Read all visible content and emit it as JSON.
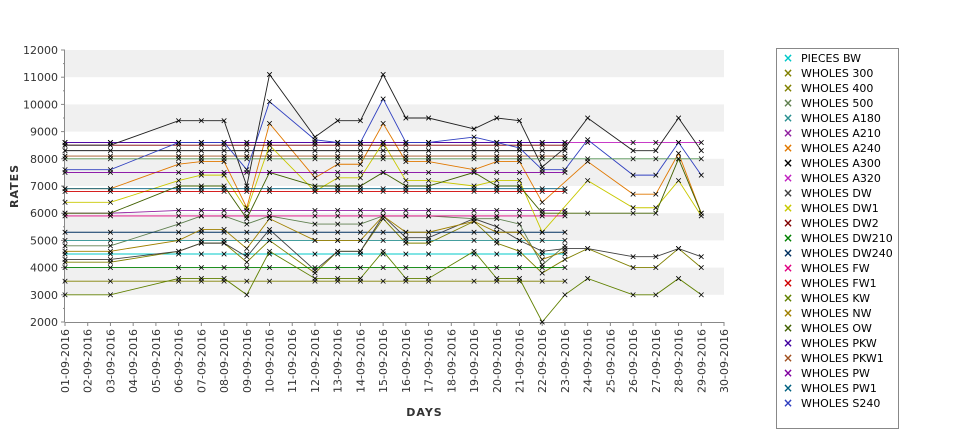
{
  "chart_data": {
    "type": "line",
    "xlabel": "DAYS",
    "ylabel": "RATES",
    "ylim": [
      2000,
      12000
    ],
    "yticks": [
      2000,
      3000,
      4000,
      5000,
      6000,
      7000,
      8000,
      9000,
      10000,
      11000,
      12000
    ],
    "ytick_labels": [
      "2000",
      "3000",
      "4000",
      "5000",
      "6000",
      "7000",
      "8000",
      "9000",
      "10000",
      "11000",
      "12000"
    ],
    "x": [
      "01-09-2016",
      "02-09-2016",
      "03-09-2016",
      "04-09-2016",
      "05-09-2016",
      "06-09-2016",
      "07-09-2016",
      "08-09-2016",
      "09-09-2016",
      "10-09-2016",
      "11-09-2016",
      "12-09-2016",
      "13-09-2016",
      "14-09-2016",
      "15-09-2016",
      "16-09-2016",
      "17-09-2016",
      "18-09-2016",
      "19-09-2016",
      "20-09-2016",
      "21-09-2016",
      "22-09-2016",
      "23-09-2016",
      "24-09-2016",
      "25-09-2016",
      "26-09-2016",
      "27-09-2016",
      "28-09-2016",
      "29-09-2016",
      "30-09-2016"
    ],
    "grid": "alternating-bands",
    "legend_position": "right",
    "series": [
      {
        "name": "PIECES BW",
        "color": "#00c8c8",
        "values": [
          4500,
          null,
          4500,
          null,
          null,
          4500,
          4500,
          4500,
          4500,
          4500,
          null,
          4500,
          4500,
          4500,
          4500,
          4500,
          4500,
          null,
          4500,
          4500,
          4500,
          4500,
          4500,
          null,
          null,
          null,
          null,
          null,
          null,
          null
        ]
      },
      {
        "name": "WHOLES 300",
        "color": "#808000",
        "values": [
          3500,
          null,
          3500,
          null,
          null,
          3500,
          3500,
          3500,
          3500,
          3500,
          null,
          3500,
          3500,
          3500,
          3500,
          3500,
          3500,
          null,
          3500,
          3500,
          3500,
          3500,
          3500,
          null,
          null,
          null,
          null,
          null,
          null,
          null
        ]
      },
      {
        "name": "WHOLES 400",
        "color": "#808000",
        "values": [
          4200,
          null,
          4200,
          null,
          null,
          4600,
          4900,
          4900,
          4200,
          5000,
          null,
          3800,
          4600,
          4600,
          5800,
          4900,
          4900,
          null,
          5700,
          4900,
          4600,
          3800,
          4300,
          4700,
          null,
          4000,
          4000,
          4700,
          4000,
          null
        ]
      },
      {
        "name": "WHOLES 500",
        "color": "#608050",
        "values": [
          4800,
          null,
          4800,
          null,
          null,
          5600,
          5900,
          5900,
          5600,
          5900,
          null,
          5600,
          5600,
          5600,
          5900,
          5900,
          5900,
          null,
          5800,
          5800,
          5600,
          4100,
          4800,
          null,
          null,
          null,
          null,
          null,
          null,
          null
        ]
      },
      {
        "name": "WHOLES A180",
        "color": "#2a9090",
        "values": [
          5000,
          null,
          5000,
          null,
          null,
          5000,
          5000,
          5000,
          5000,
          5000,
          null,
          5000,
          5000,
          5000,
          5000,
          5000,
          5000,
          null,
          5000,
          5000,
          5000,
          5000,
          5000,
          null,
          null,
          null,
          null,
          null,
          null,
          null
        ]
      },
      {
        "name": "WHOLES A210",
        "color": "#9020a0",
        "values": [
          6000,
          null,
          6000,
          null,
          null,
          6100,
          6100,
          6100,
          6100,
          6100,
          null,
          6100,
          6100,
          6100,
          6100,
          6100,
          6100,
          null,
          6100,
          6100,
          6100,
          6100,
          6100,
          null,
          null,
          null,
          null,
          null,
          null,
          null
        ]
      },
      {
        "name": "WHOLES A240",
        "color": "#e07800",
        "values": [
          6900,
          null,
          6900,
          null,
          null,
          7800,
          7900,
          7900,
          6200,
          9300,
          null,
          7300,
          7800,
          7800,
          9300,
          7900,
          7900,
          null,
          7600,
          7900,
          7900,
          6400,
          null,
          7900,
          null,
          6700,
          6700,
          8200,
          6000,
          null
        ]
      },
      {
        "name": "WHOLES A300",
        "color": "#000000",
        "values": [
          8300,
          null,
          8300,
          null,
          null,
          8300,
          8300,
          8300,
          8300,
          8300,
          null,
          8300,
          8300,
          8300,
          8300,
          8300,
          8300,
          null,
          8300,
          8300,
          8300,
          8300,
          8300,
          null,
          null,
          null,
          null,
          null,
          null,
          null
        ]
      },
      {
        "name": "WHOLES A320",
        "color": "#c020c0",
        "values": [
          8600,
          null,
          8600,
          null,
          null,
          8600,
          8600,
          8600,
          8600,
          8600,
          null,
          8600,
          8600,
          8600,
          8600,
          8600,
          8600,
          null,
          8600,
          8600,
          8600,
          8600,
          8600,
          8600,
          null,
          8600,
          8600,
          8600,
          8600,
          null
        ]
      },
      {
        "name": "WHOLES DW",
        "color": "#404040",
        "values": [
          4300,
          null,
          4300,
          null,
          null,
          4600,
          4900,
          4900,
          4400,
          5400,
          null,
          3900,
          4600,
          4600,
          5900,
          5100,
          5100,
          null,
          5800,
          5500,
          5000,
          4600,
          4700,
          4700,
          null,
          4400,
          4400,
          4700,
          4400,
          null
        ]
      },
      {
        "name": "WHOLES DW1",
        "color": "#c8c800",
        "values": [
          6400,
          null,
          6400,
          null,
          null,
          7200,
          7400,
          7400,
          6100,
          8500,
          null,
          6800,
          7300,
          7300,
          8600,
          7200,
          7200,
          null,
          7000,
          7200,
          7200,
          5300,
          null,
          7200,
          null,
          6200,
          6200,
          7200,
          5900,
          null
        ]
      },
      {
        "name": "WHOLES DW2",
        "color": "#800000",
        "values": [
          8500,
          null,
          8500,
          null,
          null,
          8500,
          8500,
          8500,
          8500,
          8500,
          null,
          8500,
          8500,
          8500,
          8500,
          8500,
          8500,
          null,
          8500,
          8500,
          8500,
          8500,
          8500,
          null,
          null,
          null,
          null,
          null,
          null,
          null
        ]
      },
      {
        "name": "WHOLES DW210",
        "color": "#008000",
        "values": [
          4000,
          null,
          4000,
          null,
          null,
          4000,
          4000,
          4000,
          4000,
          4000,
          null,
          4000,
          4000,
          4000,
          4000,
          4000,
          4000,
          null,
          4000,
          4000,
          4000,
          4000,
          4000,
          null,
          null,
          null,
          null,
          null,
          null,
          null
        ]
      },
      {
        "name": "WHOLES DW240",
        "color": "#003060",
        "values": [
          5300,
          null,
          5300,
          null,
          null,
          5300,
          5300,
          5300,
          5300,
          5300,
          null,
          5300,
          5300,
          5300,
          5300,
          5300,
          5300,
          null,
          5300,
          5300,
          5300,
          5300,
          5300,
          null,
          null,
          null,
          null,
          null,
          null,
          null
        ]
      },
      {
        "name": "WHOLES FW",
        "color": "#e00080",
        "values": [
          5900,
          null,
          5900,
          null,
          null,
          5900,
          5900,
          5900,
          5900,
          5900,
          null,
          5900,
          5900,
          5900,
          5900,
          5900,
          5900,
          null,
          5900,
          5900,
          5900,
          5900,
          5900,
          null,
          null,
          null,
          null,
          null,
          null,
          null
        ]
      },
      {
        "name": "WHOLES FW1",
        "color": "#d00000",
        "values": [
          6800,
          null,
          6800,
          null,
          null,
          6800,
          6800,
          6800,
          6800,
          6800,
          null,
          6800,
          6800,
          6800,
          6800,
          6800,
          6800,
          null,
          6800,
          6800,
          6800,
          6800,
          6800,
          null,
          null,
          null,
          null,
          null,
          null,
          null
        ]
      },
      {
        "name": "WHOLES KW",
        "color": "#608000",
        "values": [
          3000,
          null,
          3000,
          null,
          null,
          3600,
          3600,
          3600,
          3000,
          4600,
          null,
          3600,
          3600,
          3600,
          4600,
          3600,
          3600,
          null,
          4600,
          3600,
          3600,
          2000,
          3000,
          3600,
          null,
          3000,
          3000,
          3600,
          3000,
          null
        ]
      },
      {
        "name": "WHOLES NW",
        "color": "#a08000",
        "values": [
          4600,
          null,
          4600,
          null,
          null,
          5000,
          5400,
          5400,
          4700,
          5800,
          null,
          5000,
          5000,
          5000,
          5900,
          5300,
          5300,
          null,
          5700,
          5300,
          5300,
          4300,
          4600,
          null,
          null,
          null,
          null,
          null,
          null,
          null
        ]
      },
      {
        "name": "WHOLES OW",
        "color": "#406000",
        "values": [
          6000,
          null,
          6000,
          null,
          null,
          7000,
          7000,
          7000,
          5800,
          7500,
          null,
          7000,
          7000,
          7000,
          7500,
          7000,
          7000,
          null,
          7500,
          7000,
          7000,
          6000,
          6000,
          6000,
          null,
          6000,
          6000,
          8000,
          6000,
          null
        ]
      },
      {
        "name": "WHOLES PKW",
        "color": "#4000a0",
        "values": [
          8600,
          null,
          8600,
          null,
          null,
          8600,
          8600,
          8600,
          8600,
          8600,
          null,
          8600,
          8600,
          8600,
          8600,
          8600,
          8600,
          null,
          8600,
          8600,
          8600,
          8600,
          8600,
          null,
          null,
          null,
          null,
          null,
          null,
          null
        ]
      },
      {
        "name": "WHOLES PKW1",
        "color": "#a05020",
        "values": [
          8100,
          null,
          8100,
          null,
          null,
          8100,
          8100,
          8100,
          8100,
          8100,
          null,
          8100,
          8100,
          8100,
          8100,
          8100,
          8100,
          null,
          8100,
          8100,
          8100,
          8100,
          8100,
          null,
          null,
          null,
          null,
          null,
          null,
          null
        ]
      },
      {
        "name": "WHOLES PW",
        "color": "#8000a0",
        "values": [
          7500,
          null,
          7500,
          null,
          null,
          7500,
          7500,
          7500,
          7500,
          7500,
          null,
          7500,
          7500,
          7500,
          7500,
          7500,
          7500,
          null,
          7500,
          7500,
          7500,
          7500,
          7500,
          null,
          null,
          null,
          null,
          null,
          null,
          null
        ]
      },
      {
        "name": "WHOLES PW1",
        "color": "#006080",
        "values": [
          6900,
          null,
          6900,
          null,
          null,
          6900,
          6900,
          6900,
          6900,
          6900,
          null,
          6900,
          6900,
          6900,
          6900,
          6900,
          6900,
          null,
          6900,
          6900,
          6900,
          6900,
          6900,
          null,
          null,
          null,
          null,
          null,
          null,
          null
        ]
      },
      {
        "name": "WHOLES S240",
        "color": "#3040c0",
        "values": [
          7600,
          null,
          7600,
          null,
          null,
          8600,
          8600,
          8600,
          7600,
          10100,
          null,
          8700,
          8600,
          8600,
          10200,
          8600,
          8600,
          null,
          8800,
          8600,
          8400,
          7600,
          7600,
          8700,
          null,
          7400,
          7400,
          8600,
          7400,
          null
        ]
      },
      {
        "name": "",
        "color": "#202020",
        "values": [
          8500,
          null,
          8500,
          null,
          null,
          9400,
          9400,
          9400,
          7000,
          11100,
          null,
          8800,
          9400,
          9400,
          11100,
          9500,
          9500,
          null,
          9100,
          9500,
          9400,
          7700,
          8400,
          9500,
          null,
          8300,
          8300,
          9500,
          8300,
          null
        ]
      },
      {
        "name": "",
        "color": "#509050",
        "values": [
          8000,
          null,
          8000,
          null,
          null,
          8000,
          8000,
          8000,
          8000,
          8000,
          null,
          8000,
          8000,
          8000,
          8000,
          8000,
          8000,
          null,
          8000,
          8000,
          8000,
          8000,
          8000,
          8000,
          null,
          8000,
          8000,
          8000,
          8000,
          null
        ]
      }
    ]
  }
}
